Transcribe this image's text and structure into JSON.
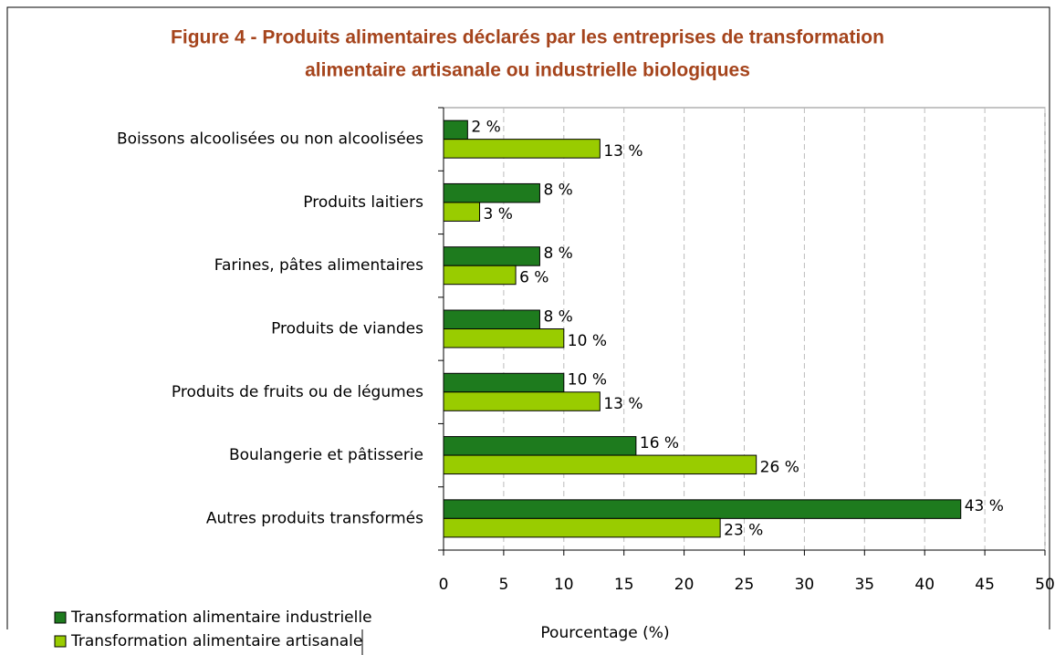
{
  "chart_data": {
    "type": "barh",
    "title": [
      "Figure 4 - Produits alimentaires déclarés par les entreprises de transformation",
      "alimentaire artisanale ou industrielle biologiques"
    ],
    "categories": [
      "Boissons alcoolisées ou non alcoolisées",
      "Produits laitiers",
      "Farines, pâtes alimentaires",
      "Produits de viandes",
      "Produits de fruits ou de légumes",
      "Boulangerie et pâtisserie",
      "Autres produits transformés"
    ],
    "series": [
      {
        "name": "Transformation alimentaire industrielle",
        "color": "#1e7b1e",
        "values": [
          2,
          8,
          8,
          8,
          10,
          16,
          43
        ],
        "value_labels": [
          "2 %",
          "8 %",
          "8 %",
          "8 %",
          "10 %",
          "16 %",
          "43 %"
        ]
      },
      {
        "name": "Transformation alimentaire artisanale",
        "color": "#99cc00",
        "values": [
          13,
          3,
          6,
          10,
          13,
          26,
          23
        ],
        "value_labels": [
          "13 %",
          "3 %",
          "6 %",
          "10 %",
          "13 %",
          "26 %",
          "23 %"
        ]
      }
    ],
    "xlabel": "Pourcentage (%)",
    "xlim": [
      0,
      50
    ],
    "xticks": [
      0,
      5,
      10,
      15,
      20,
      25,
      30,
      35,
      40,
      45,
      50
    ],
    "grid": true,
    "legend": "bottom-left"
  }
}
